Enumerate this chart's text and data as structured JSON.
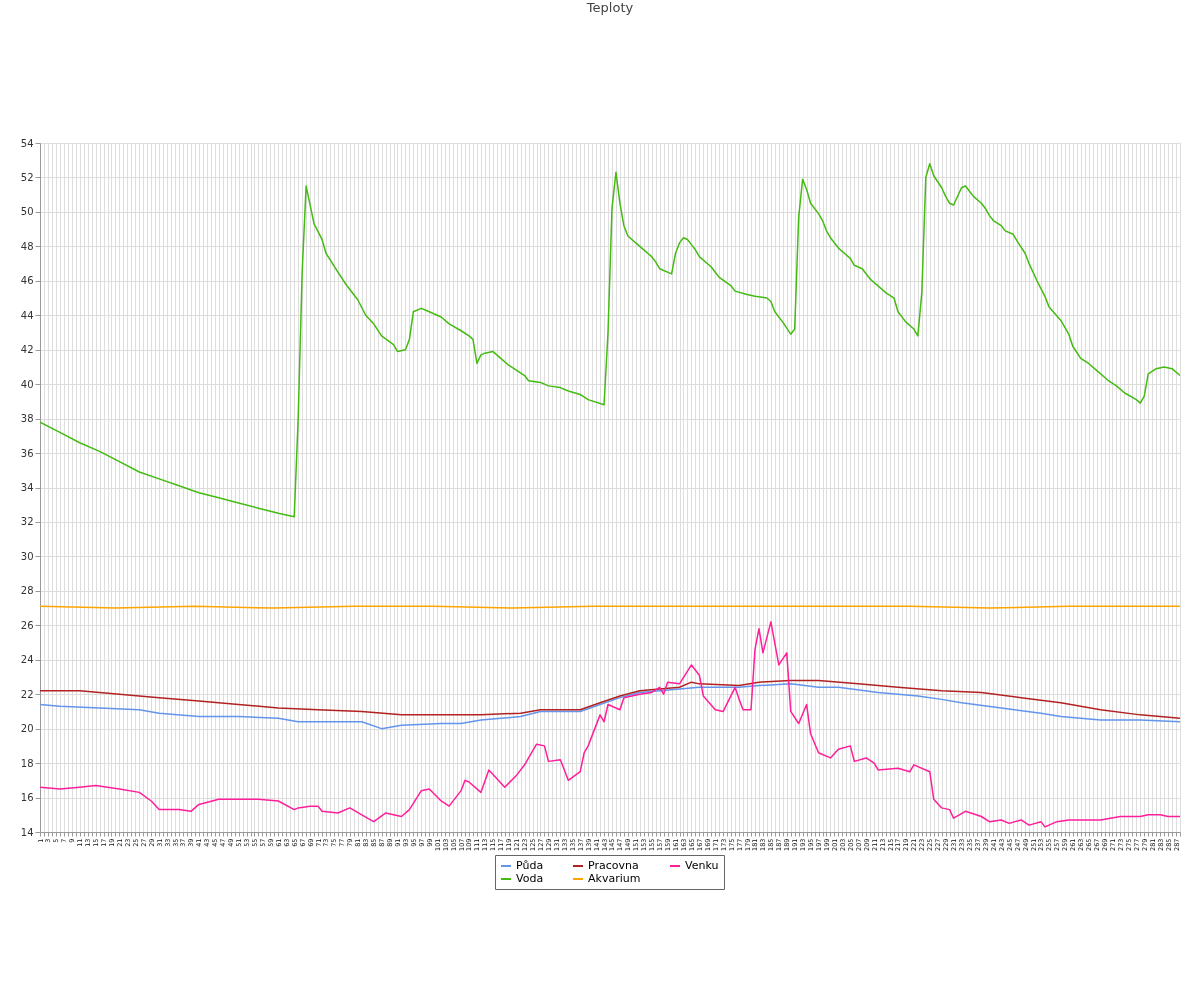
{
  "chart_data": {
    "type": "line",
    "title": "Teploty",
    "xlim": [
      1,
      288
    ],
    "xticks": [
      1,
      {
        "value": 2,
        "label": null
      },
      3,
      {
        "value": 4,
        "label": null
      },
      5,
      {
        "value": 6,
        "label": null
      },
      7,
      {
        "value": 8,
        "label": null
      },
      9,
      {
        "value": 10,
        "label": null
      },
      11,
      {
        "value": 12,
        "label": null
      },
      13,
      {
        "value": 14,
        "label": null
      },
      15,
      {
        "value": 16,
        "label": null
      },
      17,
      {
        "value": 18,
        "label": null
      },
      19,
      {
        "value": 20,
        "label": null
      },
      21,
      {
        "value": 22,
        "label": null
      },
      23,
      {
        "value": 24,
        "label": null
      },
      25,
      {
        "value": 26,
        "label": null
      },
      27,
      {
        "value": 28,
        "label": null
      },
      29,
      {
        "value": 30,
        "label": null
      },
      31,
      {
        "value": 32,
        "label": null
      },
      33,
      {
        "value": 34,
        "label": null
      },
      35,
      {
        "value": 36,
        "label": null
      },
      37,
      {
        "value": 38,
        "label": null
      },
      39,
      {
        "value": 40,
        "label": null
      },
      41,
      {
        "value": 42,
        "label": null
      },
      43,
      {
        "value": 44,
        "label": null
      },
      45,
      {
        "value": 46,
        "label": null
      },
      47,
      {
        "value": 48,
        "label": null
      },
      49,
      {
        "value": 50,
        "label": null
      },
      51,
      {
        "value": 52,
        "label": null
      },
      53,
      {
        "value": 54,
        "label": null
      },
      55,
      {
        "value": 56,
        "label": null
      },
      57,
      {
        "value": 58,
        "label": null
      },
      59,
      {
        "value": 60,
        "label": null
      },
      61,
      {
        "value": 62,
        "label": null
      },
      63,
      {
        "value": 64,
        "label": null
      },
      65,
      {
        "value": 66,
        "label": null
      },
      67,
      {
        "value": 68,
        "label": null
      },
      69,
      {
        "value": 70,
        "label": null
      },
      71,
      {
        "value": 72,
        "label": null
      },
      73,
      {
        "value": 74,
        "label": null
      },
      75,
      {
        "value": 76,
        "label": null
      },
      77,
      {
        "value": 78,
        "label": null
      },
      79,
      {
        "value": 80,
        "label": null
      },
      81,
      {
        "value": 82,
        "label": null
      },
      83,
      {
        "value": 84,
        "label": null
      },
      85,
      {
        "value": 86,
        "label": null
      },
      87,
      {
        "value": 88,
        "label": null
      },
      89,
      {
        "value": 90,
        "label": null
      },
      91,
      {
        "value": 92,
        "label": null
      },
      93,
      {
        "value": 94,
        "label": null
      },
      95,
      {
        "value": 96,
        "label": null
      },
      97,
      {
        "value": 98,
        "label": null
      },
      99,
      {
        "value": 100,
        "label": null
      },
      101,
      {
        "value": 102,
        "label": null
      },
      103,
      {
        "value": 104,
        "label": null
      },
      105,
      {
        "value": 106,
        "label": null
      },
      107,
      {
        "value": 108,
        "label": null
      },
      109,
      {
        "value": 110,
        "label": null
      },
      111,
      {
        "value": 112,
        "label": null
      },
      113,
      {
        "value": 114,
        "label": null
      },
      115,
      {
        "value": 116,
        "label": null
      },
      117,
      {
        "value": 118,
        "label": null
      },
      119,
      {
        "value": 120,
        "label": null
      },
      121,
      {
        "value": 122,
        "label": null
      },
      123,
      {
        "value": 124,
        "label": null
      },
      125,
      {
        "value": 126,
        "label": null
      },
      127,
      {
        "value": 128,
        "label": null
      },
      129,
      {
        "value": 130,
        "label": null
      },
      131,
      {
        "value": 132,
        "label": null
      },
      133,
      {
        "value": 134,
        "label": null
      },
      135,
      {
        "value": 136,
        "label": null
      },
      137,
      {
        "value": 138,
        "label": null
      },
      139,
      {
        "value": 140,
        "label": null
      },
      141,
      {
        "value": 142,
        "label": null
      },
      143,
      {
        "value": 144,
        "label": null
      },
      145,
      {
        "value": 146,
        "label": null
      },
      147,
      {
        "value": 148,
        "label": null
      },
      149,
      {
        "value": 150,
        "label": null
      },
      151,
      {
        "value": 152,
        "label": null
      },
      153,
      {
        "value": 154,
        "label": null
      },
      155,
      {
        "value": 156,
        "label": null
      },
      157,
      {
        "value": 158,
        "label": null
      },
      159,
      {
        "value": 160,
        "label": null
      },
      161,
      {
        "value": 162,
        "label": null
      },
      163,
      {
        "value": 164,
        "label": null
      },
      165,
      {
        "value": 166,
        "label": null
      },
      167,
      {
        "value": 168,
        "label": null
      },
      169,
      {
        "value": 170,
        "label": null
      },
      171,
      {
        "value": 172,
        "label": null
      },
      173,
      {
        "value": 174,
        "label": null
      },
      175,
      {
        "value": 176,
        "label": null
      },
      177,
      {
        "value": 178,
        "label": null
      },
      179,
      {
        "value": 180,
        "label": null
      },
      181,
      {
        "value": 182,
        "label": null
      },
      183,
      {
        "value": 184,
        "label": null
      },
      185,
      {
        "value": 186,
        "label": null
      },
      187,
      {
        "value": 188,
        "label": null
      },
      189,
      {
        "value": 190,
        "label": null
      },
      191,
      {
        "value": 192,
        "label": null
      },
      193,
      {
        "value": 194,
        "label": null
      },
      195,
      {
        "value": 196,
        "label": null
      },
      197,
      {
        "value": 198,
        "label": null
      },
      199,
      {
        "value": 200,
        "label": null
      },
      201,
      {
        "value": 202,
        "label": null
      },
      203,
      {
        "value": 204,
        "label": null
      },
      205,
      {
        "value": 206,
        "label": null
      },
      207,
      {
        "value": 208,
        "label": null
      },
      209,
      {
        "value": 210,
        "label": null
      },
      211,
      {
        "value": 212,
        "label": null
      },
      213,
      {
        "value": 214,
        "label": null
      },
      215,
      {
        "value": 216,
        "label": null
      },
      217,
      {
        "value": 218,
        "label": null
      },
      219,
      {
        "value": 220,
        "label": null
      },
      221,
      {
        "value": 222,
        "label": null
      },
      223,
      {
        "value": 224,
        "label": null
      },
      225,
      {
        "value": 226,
        "label": null
      },
      227,
      {
        "value": 228,
        "label": null
      },
      229,
      {
        "value": 230,
        "label": null
      },
      231,
      {
        "value": 232,
        "label": null
      },
      233,
      {
        "value": 234,
        "label": null
      },
      235,
      {
        "value": 236,
        "label": null
      },
      237,
      {
        "value": 238,
        "label": null
      },
      239,
      {
        "value": 240,
        "label": null
      },
      241,
      {
        "value": 242,
        "label": null
      },
      243,
      {
        "value": 244,
        "label": null
      },
      245,
      {
        "value": 246,
        "label": null
      },
      247,
      {
        "value": 248,
        "label": null
      },
      249,
      {
        "value": 250,
        "label": null
      },
      251,
      {
        "value": 252,
        "label": null
      },
      253,
      {
        "value": 254,
        "label": null
      },
      255,
      {
        "value": 256,
        "label": null
      },
      257,
      {
        "value": 258,
        "label": null
      },
      259,
      {
        "value": 260,
        "label": null
      },
      261,
      {
        "value": 262,
        "label": null
      },
      263,
      {
        "value": 264,
        "label": null
      },
      265,
      {
        "value": 266,
        "label": null
      },
      267,
      {
        "value": 268,
        "label": null
      },
      269,
      {
        "value": 270,
        "label": null
      },
      271,
      {
        "value": 272,
        "label": null
      },
      273,
      {
        "value": 274,
        "label": null
      },
      275,
      {
        "value": 276,
        "label": null
      },
      277,
      {
        "value": 278,
        "label": null
      },
      279,
      {
        "value": 280,
        "label": null
      },
      281,
      {
        "value": 282,
        "label": null
      },
      283,
      {
        "value": 284,
        "label": null
      },
      285,
      {
        "value": 286,
        "label": null
      },
      287,
      {
        "value": 288,
        "label": null
      }
    ],
    "ylim": [
      14,
      54
    ],
    "yticks": [
      14,
      16,
      18,
      20,
      22,
      24,
      26,
      28,
      30,
      32,
      34,
      36,
      38,
      40,
      42,
      44,
      46,
      48,
      50,
      52,
      54
    ],
    "grid": true,
    "legend": "bottom",
    "marker": "none",
    "line_style": "solid",
    "series": [
      {
        "name": "Půda",
        "color": "#6495ed",
        "x": [
          1,
          6,
          16,
          26,
          31,
          41,
          51,
          61,
          66,
          76,
          82,
          87,
          92,
          102,
          107,
          112,
          122,
          127,
          137,
          142,
          147,
          152,
          157,
          167,
          177,
          182,
          190,
          197,
          202,
          212,
          222,
          228,
          233,
          243,
          253,
          258,
          268,
          278,
          288
        ],
        "values": [
          21.4,
          21.3,
          21.2,
          21.1,
          20.9,
          20.7,
          20.7,
          20.6,
          20.4,
          20.4,
          20.4,
          20.0,
          20.2,
          20.3,
          20.3,
          20.5,
          20.7,
          21.0,
          21.0,
          21.4,
          21.8,
          22.1,
          22.2,
          22.4,
          22.4,
          22.5,
          22.6,
          22.4,
          22.4,
          22.1,
          21.9,
          21.7,
          21.5,
          21.2,
          20.9,
          20.7,
          20.5,
          20.5,
          20.4
        ]
      },
      {
        "name": "Pracovna",
        "color": "#b22222",
        "x": [
          1,
          11,
          16,
          21,
          26,
          31,
          41,
          51,
          61,
          71,
          82,
          92,
          102,
          112,
          122,
          127,
          137,
          142,
          147,
          152,
          157,
          162,
          165,
          167,
          177,
          182,
          190,
          197,
          207,
          217,
          228,
          238,
          248,
          258,
          268,
          278,
          288
        ],
        "values": [
          22.2,
          22.2,
          22.1,
          22.0,
          21.9,
          21.8,
          21.6,
          21.4,
          21.2,
          21.1,
          21.0,
          20.8,
          20.8,
          20.8,
          20.9,
          21.1,
          21.1,
          21.5,
          21.9,
          22.2,
          22.3,
          22.4,
          22.7,
          22.6,
          22.5,
          22.7,
          22.8,
          22.8,
          22.6,
          22.4,
          22.2,
          22.1,
          21.8,
          21.5,
          21.1,
          20.8,
          20.6
        ]
      },
      {
        "name": "Venku",
        "color": "#ff1f9a",
        "x": [
          1,
          6,
          11,
          15,
          21,
          26,
          29,
          31,
          36,
          39,
          41,
          46,
          51,
          56,
          61,
          65,
          66,
          69,
          71,
          72,
          76,
          79,
          82,
          85,
          88,
          92,
          94,
          97,
          99,
          102,
          104,
          107,
          108,
          109,
          112,
          114,
          118,
          121,
          123,
          126,
          128,
          129,
          132,
          134,
          137,
          138,
          139,
          142,
          143,
          144,
          147,
          148,
          152,
          155,
          157,
          158,
          159,
          162,
          165,
          167,
          168,
          171,
          173,
          176,
          177,
          178,
          180,
          181,
          182,
          183,
          185,
          187,
          189,
          190,
          192,
          194,
          195,
          197,
          200,
          202,
          205,
          206,
          209,
          211,
          212,
          217,
          220,
          221,
          225,
          226,
          228,
          230,
          231,
          234,
          238,
          240,
          243,
          245,
          248,
          250,
          253,
          254,
          257,
          260,
          268,
          273,
          278,
          280,
          283,
          285,
          288
        ],
        "values": [
          16.6,
          16.5,
          16.6,
          16.7,
          16.5,
          16.3,
          15.8,
          15.3,
          15.3,
          15.2,
          15.6,
          15.9,
          15.9,
          15.9,
          15.8,
          15.3,
          15.4,
          15.5,
          15.5,
          15.2,
          15.1,
          15.4,
          15.0,
          14.6,
          15.1,
          14.9,
          15.3,
          16.4,
          16.5,
          15.8,
          15.5,
          16.4,
          17.0,
          16.9,
          16.3,
          17.6,
          16.6,
          17.3,
          17.9,
          19.1,
          19.0,
          18.1,
          18.2,
          17.0,
          17.5,
          18.6,
          19.0,
          20.8,
          20.4,
          21.4,
          21.1,
          21.8,
          22.0,
          22.1,
          22.4,
          22.0,
          22.7,
          22.6,
          23.7,
          23.1,
          21.9,
          21.1,
          21.0,
          22.4,
          21.7,
          21.1,
          21.1,
          24.6,
          25.8,
          24.4,
          26.2,
          23.7,
          24.4,
          21.0,
          20.3,
          21.4,
          19.7,
          18.6,
          18.3,
          18.8,
          19.0,
          18.1,
          18.3,
          18.0,
          17.6,
          17.7,
          17.5,
          17.9,
          17.5,
          15.9,
          15.4,
          15.3,
          14.8,
          15.2,
          14.9,
          14.6,
          14.7,
          14.5,
          14.7,
          14.4,
          14.6,
          14.3,
          14.6,
          14.7,
          14.7,
          14.9,
          14.9,
          15.0,
          15.0,
          14.9,
          14.9
        ]
      },
      {
        "name": "Voda",
        "color": "#44bb11",
        "x": [
          1,
          6,
          11,
          16,
          21,
          26,
          31,
          36,
          41,
          46,
          51,
          56,
          61,
          65,
          66,
          67,
          68,
          70,
          72,
          73,
          76,
          78,
          81,
          83,
          85,
          87,
          90,
          91,
          93,
          94,
          95,
          97,
          99,
          102,
          104,
          107,
          109,
          110,
          111,
          112,
          113,
          115,
          117,
          119,
          121,
          123,
          124,
          127,
          129,
          132,
          134,
          137,
          139,
          143,
          144,
          145,
          146,
          147,
          148,
          149,
          152,
          155,
          156,
          157,
          160,
          161,
          162,
          163,
          164,
          165,
          166,
          167,
          170,
          171,
          172,
          175,
          176,
          179,
          181,
          184,
          185,
          186,
          188,
          190,
          191,
          192,
          193,
          194,
          195,
          197,
          198,
          199,
          200,
          202,
          205,
          206,
          208,
          210,
          213,
          214,
          216,
          217,
          219,
          221,
          222,
          223,
          224,
          225,
          226,
          228,
          229,
          230,
          231,
          233,
          234,
          235,
          236,
          238,
          239,
          240,
          241,
          243,
          244,
          246,
          247,
          249,
          250,
          252,
          254,
          255,
          258,
          260,
          261,
          263,
          265,
          267,
          269,
          270,
          272,
          274,
          277,
          278,
          279,
          280,
          282,
          284,
          286,
          288
        ],
        "values": [
          37.8,
          37.2,
          36.6,
          36.1,
          35.5,
          34.9,
          34.5,
          34.1,
          33.7,
          33.4,
          33.1,
          32.8,
          32.5,
          32.3,
          38.0,
          46.5,
          51.5,
          49.3,
          48.4,
          47.6,
          46.5,
          45.8,
          44.9,
          44.0,
          43.5,
          42.8,
          42.3,
          41.9,
          42.0,
          42.6,
          44.2,
          44.4,
          44.2,
          43.9,
          43.5,
          43.1,
          42.8,
          42.6,
          41.2,
          41.7,
          41.8,
          41.9,
          41.5,
          41.1,
          40.8,
          40.5,
          40.2,
          40.1,
          39.9,
          39.8,
          39.6,
          39.4,
          39.1,
          38.8,
          43.0,
          50.2,
          52.3,
          50.5,
          49.2,
          48.6,
          48.0,
          47.4,
          47.1,
          46.7,
          46.4,
          47.6,
          48.2,
          48.5,
          48.4,
          48.1,
          47.8,
          47.4,
          46.8,
          46.5,
          46.2,
          45.7,
          45.4,
          45.2,
          45.1,
          45.0,
          44.8,
          44.2,
          43.6,
          42.9,
          43.2,
          49.7,
          51.9,
          51.3,
          50.5,
          49.9,
          49.5,
          48.9,
          48.5,
          47.9,
          47.3,
          46.9,
          46.7,
          46.1,
          45.5,
          45.3,
          45.0,
          44.2,
          43.6,
          43.2,
          42.8,
          45.3,
          52.0,
          52.8,
          52.1,
          51.4,
          50.9,
          50.5,
          50.4,
          51.4,
          51.5,
          51.2,
          50.9,
          50.5,
          50.2,
          49.8,
          49.5,
          49.2,
          48.9,
          48.7,
          48.3,
          47.6,
          47.0,
          46.0,
          45.1,
          44.5,
          43.7,
          42.9,
          42.2,
          41.5,
          41.2,
          40.8,
          40.4,
          40.2,
          39.9,
          39.5,
          39.1,
          38.9,
          39.3,
          40.6,
          40.9,
          41.0,
          40.9,
          40.5
        ]
      },
      {
        "name": "Akvarium",
        "color": "#ffa500",
        "x": [
          1,
          20,
          40,
          60,
          80,
          100,
          120,
          140,
          160,
          180,
          200,
          220,
          240,
          260,
          288
        ],
        "values": [
          27.1,
          27.0,
          27.1,
          27.0,
          27.1,
          27.1,
          27.0,
          27.1,
          27.1,
          27.1,
          27.1,
          27.1,
          27.0,
          27.1,
          27.1
        ]
      }
    ]
  }
}
